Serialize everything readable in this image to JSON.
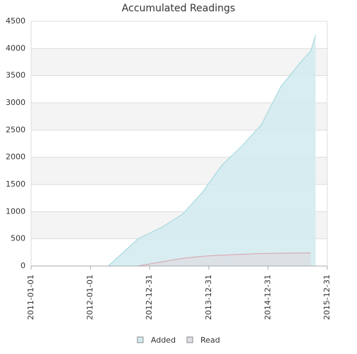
{
  "chart_data": {
    "type": "area",
    "title": "Accumulated Readings",
    "x": [
      "2012-04-20",
      "2012-10-20",
      "2013-03-20",
      "2013-07-20",
      "2013-11-20",
      "2014-03-20",
      "2014-07-20",
      "2014-11-20",
      "2015-03-20",
      "2015-07-20",
      "2015-09-20",
      "2015-10-20"
    ],
    "series": [
      {
        "name": "Added",
        "color": "#9fd6dc",
        "fill": "#d3ebf0",
        "values": [
          0,
          500,
          720,
          950,
          1350,
          1850,
          2200,
          2600,
          3300,
          3750,
          3950,
          4250
        ]
      },
      {
        "name": "Read",
        "color": "#d9a0a8",
        "fill": "#dddfe4",
        "values": [
          null,
          0,
          80,
          140,
          180,
          200,
          215,
          230,
          235,
          240,
          240,
          null
        ]
      }
    ],
    "xlim": [
      "2011-01-01",
      "2015-12-31"
    ],
    "xticks": [
      "2011-01-01",
      "2012-01-01",
      "2012-12-31",
      "2013-12-31",
      "2014-12-31",
      "2015-12-31"
    ],
    "ylim": [
      0,
      4500
    ],
    "yticks": [
      0,
      500,
      1000,
      1500,
      2000,
      2500,
      3000,
      3500,
      4000,
      4500
    ],
    "grid": true,
    "legend": "bottom"
  }
}
